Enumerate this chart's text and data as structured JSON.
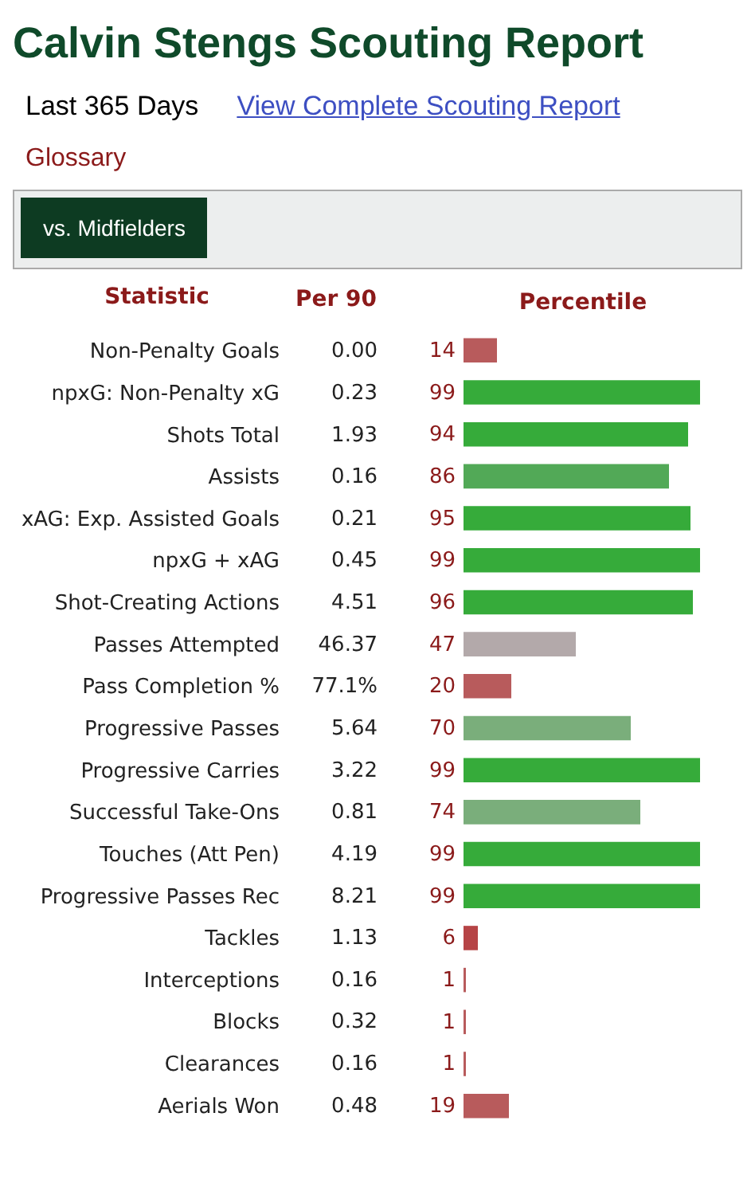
{
  "chart_data": {
    "type": "bar",
    "orientation": "horizontal",
    "title": "Calvin Stengs Scouting Report",
    "subtitle": "Last 365 Days",
    "ylabel": "Statistic",
    "xlabel": "Percentile",
    "categories": [
      "Non-Penalty Goals",
      "npxG: Non-Penalty xG",
      "Shots Total",
      "Assists",
      "xAG: Exp. Assisted Goals",
      "npxG + xAG",
      "Shot-Creating Actions",
      "Passes Attempted",
      "Pass Completion %",
      "Progressive Passes",
      "Progressive Carries",
      "Successful Take-Ons",
      "Touches (Att Pen)",
      "Progressive Passes Rec",
      "Tackles",
      "Interceptions",
      "Blocks",
      "Clearances",
      "Aerials Won"
    ],
    "values": [
      14,
      99,
      94,
      86,
      95,
      99,
      96,
      47,
      20,
      70,
      99,
      74,
      99,
      99,
      6,
      1,
      1,
      1,
      19
    ],
    "colors": [
      "#b85b5c",
      "#36ab3a",
      "#36ab3a",
      "#52a957",
      "#36ab3a",
      "#36ab3a",
      "#36ab3a",
      "#b3a9aa",
      "#b85b5c",
      "#7aae7b",
      "#36ab3a",
      "#7aae7b",
      "#36ab3a",
      "#36ab3a",
      "#b64446",
      "#b85b5c",
      "#b85b5c",
      "#b85b5c",
      "#b85b5c"
    ],
    "xlim": [
      0,
      100
    ],
    "tick_labels": "y",
    "data_labels": true,
    "annotations": [
      "View Complete Scouting Report",
      "Glossary",
      "vs. Midfielders",
      "Per 90",
      "0.00",
      "0.23",
      "1.93",
      "0.16",
      "0.21",
      "0.45",
      "4.51",
      "46.37",
      "77.1%",
      "5.64",
      "3.22",
      "0.81",
      "4.19",
      "8.21",
      "1.13",
      "0.16",
      "0.32",
      "0.16",
      "0.48"
    ]
  }
}
